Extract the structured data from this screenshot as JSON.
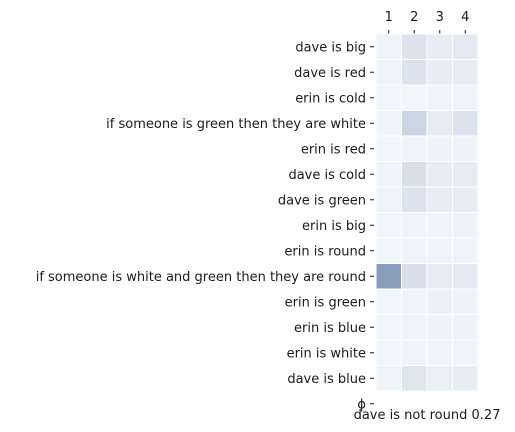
{
  "chart_data": {
    "type": "heatmap",
    "columns": [
      "1",
      "2",
      "3",
      "4"
    ],
    "rows": [
      "dave is big",
      "dave is red",
      "erin is cold",
      "if someone is green then they are white",
      "erin is red",
      "dave is cold",
      "dave is green",
      "erin is big",
      "erin is round",
      "if someone is white and green then they are round",
      "erin is green",
      "erin is blue",
      "erin is white",
      "dave is blue",
      "ϕ"
    ],
    "values": [
      [
        0.04,
        0.14,
        0.08,
        0.1
      ],
      [
        0.04,
        0.14,
        0.08,
        0.08
      ],
      [
        0.03,
        0.03,
        0.04,
        0.04
      ],
      [
        0.04,
        0.22,
        0.09,
        0.14
      ],
      [
        0.03,
        0.04,
        0.05,
        0.05
      ],
      [
        0.04,
        0.16,
        0.08,
        0.09
      ],
      [
        0.04,
        0.14,
        0.08,
        0.08
      ],
      [
        0.03,
        0.04,
        0.04,
        0.05
      ],
      [
        0.03,
        0.04,
        0.04,
        0.04
      ],
      [
        0.55,
        0.16,
        0.09,
        0.1
      ],
      [
        0.03,
        0.04,
        0.06,
        0.05
      ],
      [
        0.03,
        0.04,
        0.05,
        0.05
      ],
      [
        0.03,
        0.04,
        0.04,
        0.04
      ],
      [
        0.04,
        0.13,
        0.07,
        0.08
      ],
      [
        null,
        null,
        null,
        null
      ]
    ],
    "color_scale": {
      "low": "#f7fbff",
      "high": "#08306b",
      "vmin": 0,
      "vmax": 1.2
    },
    "caption": "dave is not round 0.27"
  }
}
